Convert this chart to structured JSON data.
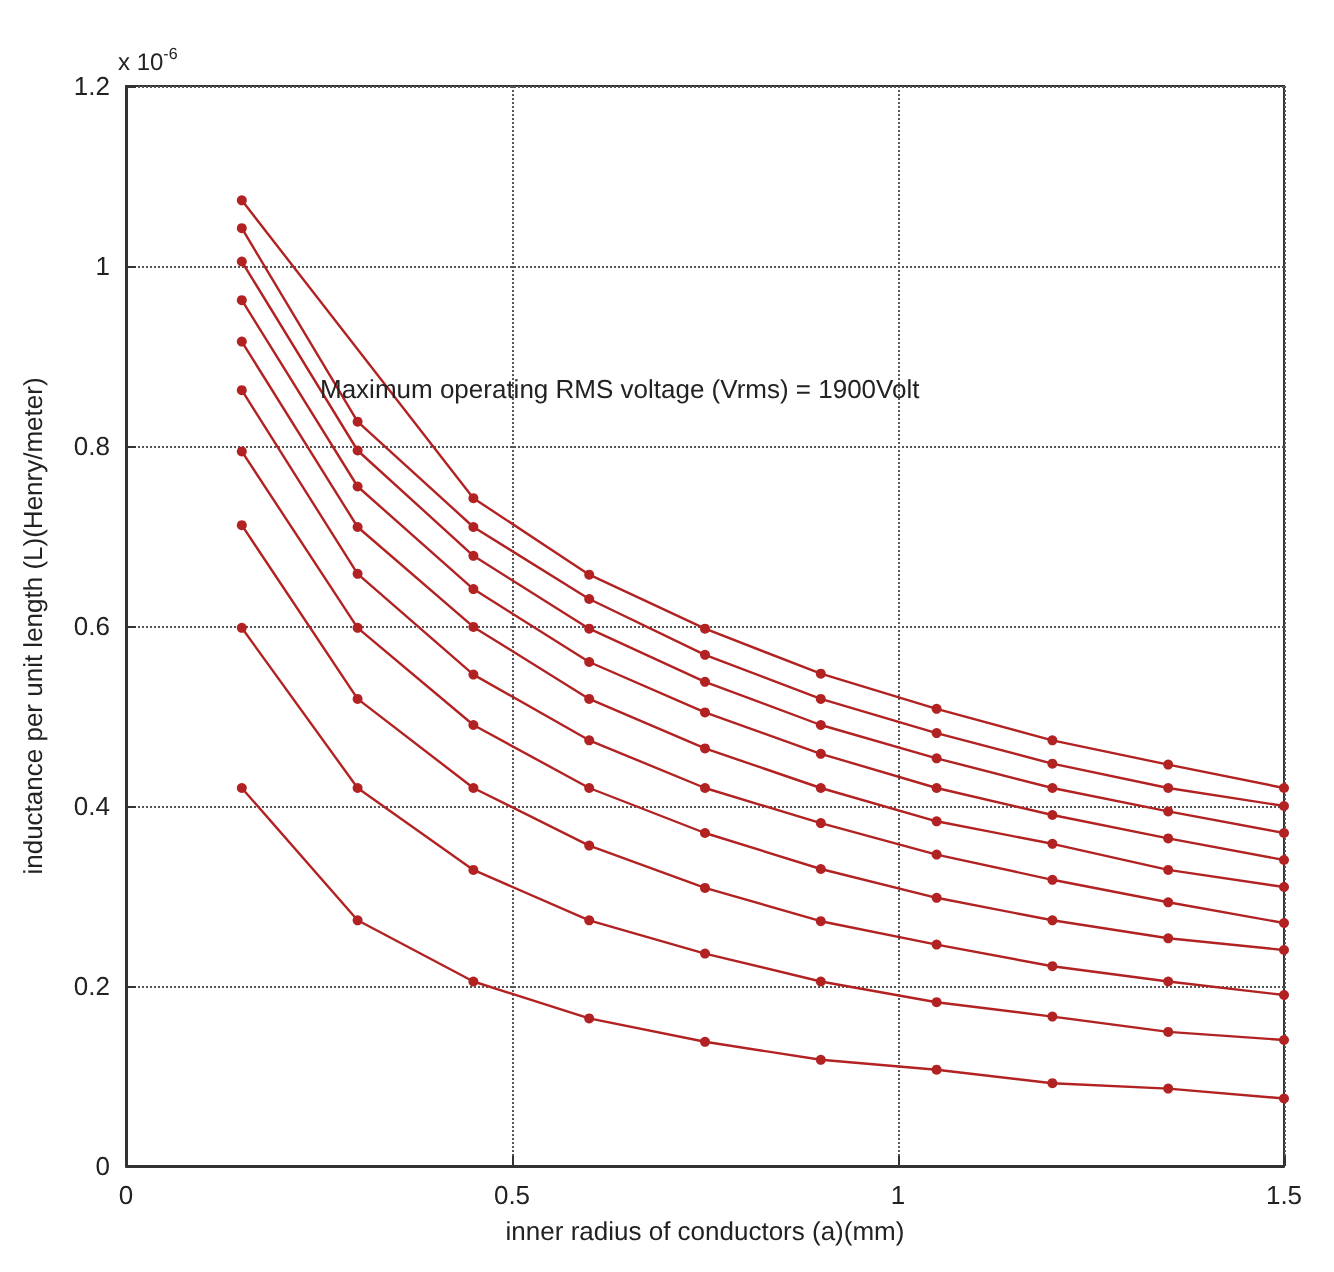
{
  "chart_data": {
    "type": "line",
    "xlabel": "inner radius of conductors (a)(mm)",
    "ylabel": "inductance per unit length (L)(Henry/meter)",
    "annotations": [
      "x 10$^{-6}$",
      "Maximum operating RMS voltage (Vrms) = 1900Volt"
    ],
    "x": [
      0.15,
      0.3,
      0.45,
      0.6,
      0.75,
      0.9,
      1.05,
      1.2,
      1.35,
      1.5
    ],
    "series": [
      {
        "color": "#b22222",
        "values": [
          1.073,
          null,
          0.742,
          0.657,
          0.597,
          0.547,
          0.508,
          0.473,
          0.446,
          0.42
        ]
      },
      {
        "color": "#b22222",
        "values": [
          1.042,
          0.827,
          0.71,
          0.63,
          0.568,
          0.519,
          0.481,
          0.447,
          0.42,
          0.4
        ]
      },
      {
        "color": "#b22222",
        "values": [
          1.005,
          0.795,
          0.678,
          0.597,
          0.538,
          0.49,
          0.453,
          0.42,
          0.394,
          0.37
        ]
      },
      {
        "color": "#b22222",
        "values": [
          0.962,
          0.755,
          0.641,
          0.56,
          0.504,
          0.458,
          0.42,
          0.39,
          0.364,
          0.34
        ]
      },
      {
        "color": "#b22222",
        "values": [
          0.916,
          0.71,
          0.599,
          0.519,
          0.464,
          0.42,
          0.383,
          0.358,
          0.329,
          0.31
        ]
      },
      {
        "color": "#b22222",
        "values": [
          0.862,
          0.658,
          0.546,
          0.473,
          0.42,
          0.381,
          0.346,
          0.318,
          0.293,
          0.27
        ]
      },
      {
        "color": "#b22222",
        "values": [
          0.794,
          0.598,
          0.49,
          0.42,
          0.37,
          0.33,
          0.298,
          0.273,
          0.253,
          0.24
        ]
      },
      {
        "color": "#b22222",
        "values": [
          0.712,
          0.519,
          0.42,
          0.356,
          0.309,
          0.272,
          0.246,
          0.222,
          0.205,
          0.19
        ]
      },
      {
        "color": "#b22222",
        "values": [
          0.598,
          0.42,
          0.329,
          0.273,
          0.236,
          0.205,
          0.182,
          0.166,
          0.149,
          0.14
        ]
      },
      {
        "color": "#b22222",
        "values": [
          0.42,
          0.273,
          0.205,
          0.164,
          0.138,
          0.118,
          0.107,
          0.092,
          0.086,
          0.075
        ]
      }
    ],
    "xlim": [
      0,
      1.5
    ],
    "xticks": [
      0,
      0.5,
      1,
      1.5
    ],
    "ylim": [
      0,
      1.2
    ],
    "yticks": [
      0,
      0.2,
      0.4,
      0.6,
      0.8,
      1,
      1.2
    ],
    "grid": true,
    "marker": "circle",
    "line_style": "solid"
  }
}
